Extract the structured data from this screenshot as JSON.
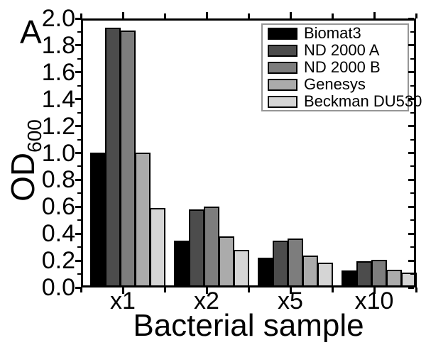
{
  "panel_label": "A",
  "colors": {
    "axis": "#000000",
    "background": "#ffffff",
    "legend_border": "#969696"
  },
  "chart_data": {
    "type": "bar",
    "title": "",
    "xlabel": "Bacterial sample",
    "ylabel": "OD",
    "ylabel_subscript": "600",
    "categories": [
      "x1",
      "x2",
      "x5",
      "x10"
    ],
    "series": [
      {
        "name": "Biomat3",
        "color": "#000000",
        "values": [
          1.0,
          0.35,
          0.22,
          0.125
        ]
      },
      {
        "name": "ND 2000 A",
        "color": "#4c4c4c",
        "values": [
          1.93,
          0.58,
          0.35,
          0.195
        ]
      },
      {
        "name": "ND 2000 B",
        "color": "#7d7d7d",
        "values": [
          1.91,
          0.6,
          0.365,
          0.205
        ]
      },
      {
        "name": "Genesys",
        "color": "#ababab",
        "values": [
          1.0,
          0.38,
          0.235,
          0.13
        ]
      },
      {
        "name": "Beckman DU530",
        "color": "#d5d5d5",
        "values": [
          0.59,
          0.28,
          0.185,
          0.11
        ]
      }
    ],
    "ylim": [
      0,
      2.0
    ],
    "ytick_step": 0.2,
    "ytick_labels": [
      "0.0",
      "0.2",
      "0.4",
      "0.6",
      "0.8",
      "1.0",
      "1.2",
      "1.4",
      "1.6",
      "1.8",
      "2.0"
    ],
    "minor_ytick_step": 0.1,
    "grid": false,
    "legend_position": "top-right"
  }
}
